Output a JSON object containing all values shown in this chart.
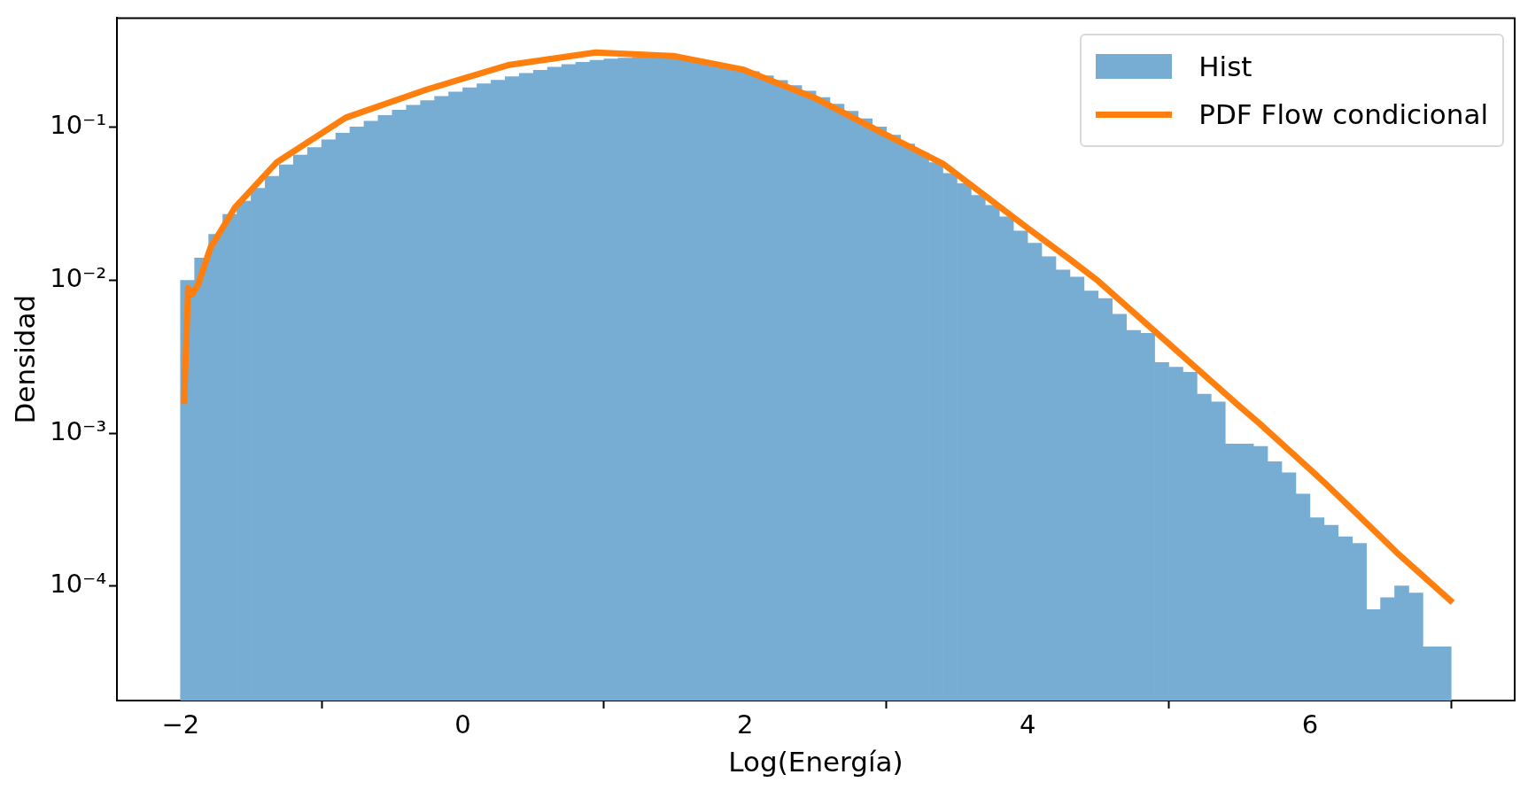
{
  "chart_data": {
    "type": "histogram",
    "xlabel": "Log(Energía)",
    "ylabel": "Densidad",
    "log": "y",
    "legend": "top right",
    "xlim": [
      -2.45,
      7.45
    ],
    "xticks": [
      {
        "value": -2,
        "label": "−2"
      },
      0,
      2,
      4,
      6
    ],
    "ylim": [
      1.78e-05,
      0.52
    ],
    "yticks": [
      {
        "value": 0.0001,
        "label": "10⁻⁴"
      },
      {
        "value": 0.001,
        "label": "10⁻³"
      },
      {
        "value": 0.01,
        "label": "10⁻²"
      },
      {
        "value": 0.1,
        "label": "10⁻¹"
      }
    ],
    "series": [
      {
        "name": "Hist",
        "color": "#77acd3",
        "bins": [
          -2,
          -1.9,
          -1.8,
          -1.7,
          -1.6,
          -1.5,
          -1.4,
          -1.3,
          -1.2,
          -1.1,
          -1,
          -0.9,
          -0.8,
          -0.7,
          -0.6,
          -0.5,
          -0.4,
          -0.3,
          -0.2,
          -0.1,
          0,
          0.1,
          0.2,
          0.3,
          0.4,
          0.5,
          0.6,
          0.7,
          0.8,
          0.9,
          1,
          1.1,
          1.2,
          1.3,
          1.4,
          1.5,
          1.6,
          1.7,
          1.8,
          1.9,
          2,
          2.1,
          2.2,
          2.3,
          2.4,
          2.5,
          2.6,
          2.7,
          2.8,
          2.9,
          3,
          3.1,
          3.2,
          3.3,
          3.4,
          3.5,
          3.6,
          3.7,
          3.8,
          3.9,
          4,
          4.1,
          4.2,
          4.3,
          4.4,
          4.5,
          4.6,
          4.7,
          4.8,
          4.9,
          5,
          5.1,
          5.2,
          5.3,
          5.4,
          5.5,
          5.6,
          5.7,
          5.8,
          5.9,
          6,
          6.1,
          6.2,
          6.3,
          6.4,
          6.5,
          6.6,
          6.7,
          6.8,
          6.9,
          7
        ],
        "values": [
          0.01,
          0.014,
          0.02,
          0.027,
          0.033,
          0.04,
          0.048,
          0.057,
          0.066,
          0.074,
          0.083,
          0.092,
          0.101,
          0.11,
          0.12,
          0.13,
          0.14,
          0.15,
          0.16,
          0.171,
          0.182,
          0.193,
          0.204,
          0.215,
          0.226,
          0.237,
          0.248,
          0.258,
          0.267,
          0.275,
          0.281,
          0.285,
          0.287,
          0.287,
          0.285,
          0.281,
          0.275,
          0.267,
          0.257,
          0.245,
          0.232,
          0.218,
          0.203,
          0.188,
          0.173,
          0.157,
          0.142,
          0.128,
          0.114,
          0.101,
          0.089,
          0.078,
          0.068,
          0.059,
          0.05,
          0.043,
          0.036,
          0.031,
          0.026,
          0.021,
          0.0175,
          0.0143,
          0.0117,
          0.0105,
          0.0085,
          0.0076,
          0.006,
          0.0047,
          0.0045,
          0.0029,
          0.0027,
          0.0025,
          0.0018,
          0.0016,
          0.00085,
          0.00085,
          0.00082,
          0.00065,
          0.00055,
          0.0004,
          0.00028,
          0.00025,
          0.00021,
          0.00019,
          7e-05,
          8.4e-05,
          0.0001,
          9e-05,
          4e-05,
          4e-05
        ]
      },
      {
        "name": "PDF Flow condicional",
        "type": "line",
        "color": "#ff7f0e",
        "x": [
          -1.975,
          -1.946,
          -1.917,
          -1.875,
          -1.787,
          -1.613,
          -1.32,
          -0.83,
          -0.25,
          0.33,
          0.94,
          1.49,
          1.98,
          2.5,
          3.0,
          3.4,
          4.0,
          4.3,
          4.5,
          4.93,
          5.5,
          5.646,
          6.0,
          6.118,
          6.5,
          6.616,
          7.011
        ],
        "values": [
          0.00155,
          0.0089,
          0.0081,
          0.0094,
          0.0164,
          0.03,
          0.059,
          0.116,
          0.178,
          0.257,
          0.31,
          0.294,
          0.24,
          0.155,
          0.0895,
          0.058,
          0.022,
          0.0137,
          0.0099,
          0.0044,
          0.0015,
          0.00115,
          0.00058,
          0.00046,
          0.00021,
          0.000165,
          7.8e-05
        ]
      }
    ]
  }
}
